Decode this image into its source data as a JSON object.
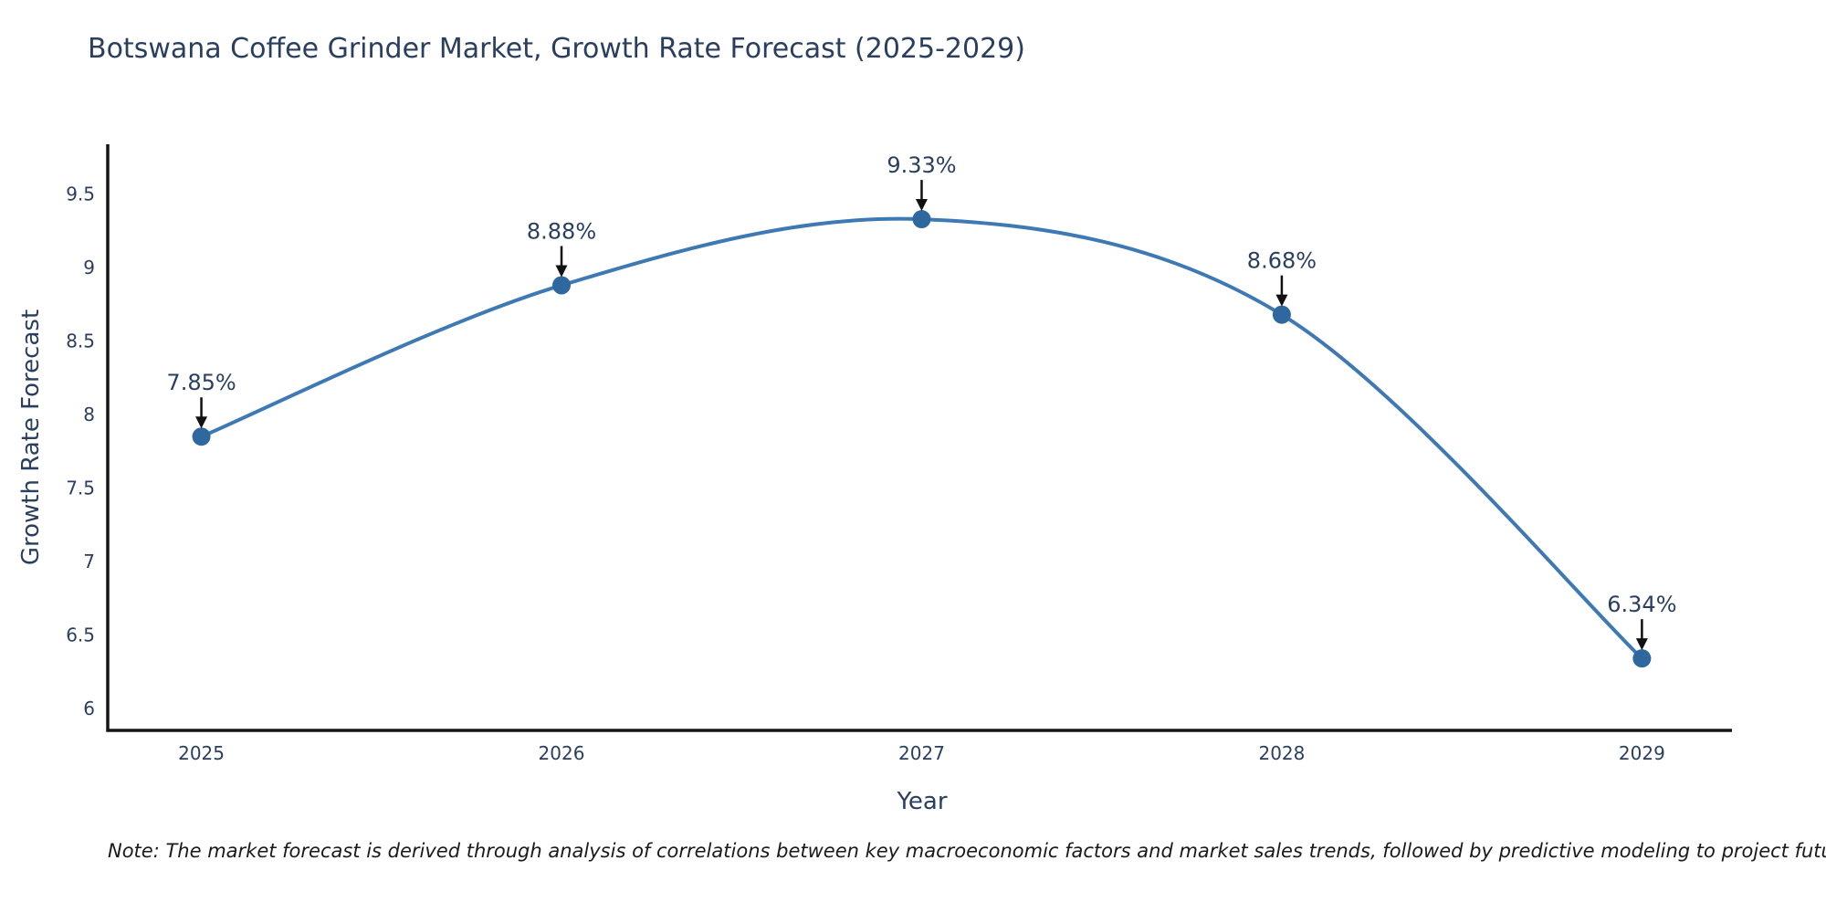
{
  "title": "Botswana Coffee Grinder Market, Growth Rate Forecast (2025-2029)",
  "note": "Note: The market forecast is derived through analysis of correlations between key macroeconomic factors and market sales trends, followed by predictive modeling to project future sales",
  "colors": {
    "text": "#2a3f5f",
    "axis": "#151515",
    "line": "#3e79b4",
    "marker": "#2f689f",
    "arrow": "#111111",
    "background": "#ffffff"
  },
  "chart_data": {
    "type": "line",
    "title": "Botswana Coffee Grinder Market, Growth Rate Forecast (2025-2029)",
    "xlabel": "Year",
    "ylabel": "Growth Rate Forecast",
    "x": [
      2025,
      2026,
      2027,
      2028,
      2029
    ],
    "categories": [
      "2025",
      "2026",
      "2027",
      "2028",
      "2029"
    ],
    "values": [
      7.85,
      8.88,
      9.33,
      8.68,
      6.34
    ],
    "labels": [
      "7.85%",
      "8.88%",
      "9.33%",
      "8.68%",
      "6.34%"
    ],
    "series_name": "Growth Rate Forecast",
    "yticks": [
      6,
      6.5,
      7,
      7.5,
      8,
      8.5,
      9,
      9.5
    ],
    "ytick_labels": [
      "6",
      "6.5",
      "7",
      "7.5",
      "8",
      "8.5",
      "9",
      "9.5"
    ],
    "xlim": [
      2024.74,
      2029.25
    ],
    "ylim": [
      5.85,
      9.84
    ],
    "grid": false,
    "legend": false,
    "line_shape": "spline",
    "annotations": "each point labeled with value and downward black arrow"
  }
}
